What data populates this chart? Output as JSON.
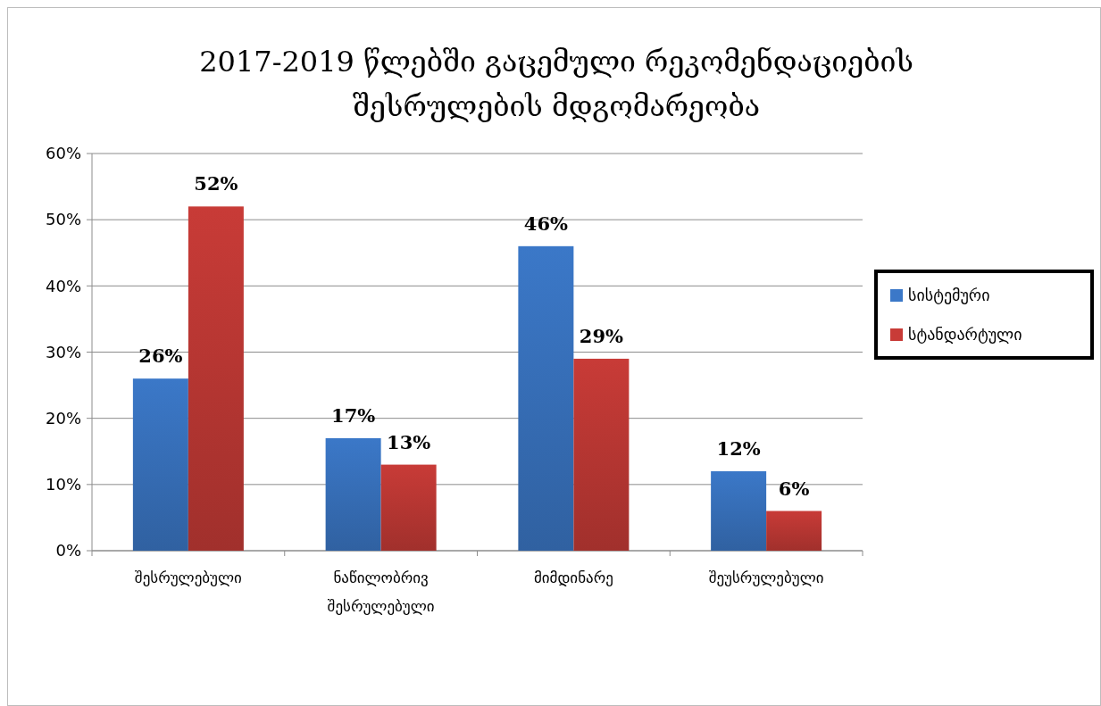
{
  "chart_data": {
    "type": "bar",
    "title": "2017-2019 წლებში გაცემული რეკომენდაციების შესრულების მდგომარეობა",
    "categories": [
      "შესრულებული",
      "ნაწილობრივ შესრულებული",
      "მიმდინარე",
      "შეუსრულებული"
    ],
    "series": [
      {
        "name": "სისტემური",
        "color": "#3b78c8",
        "values": [
          26,
          17,
          46,
          12
        ],
        "value_labels": [
          "26%",
          "17%",
          "46%",
          "12%"
        ]
      },
      {
        "name": "სტანდარტული",
        "color": "#c83b37",
        "values": [
          52,
          13,
          29,
          6
        ],
        "value_labels": [
          "52%",
          "13%",
          "29%",
          "6%"
        ]
      }
    ],
    "ylim": [
      0,
      60
    ],
    "yticks": [
      {
        "value": 0,
        "label": "0%"
      },
      {
        "value": 10,
        "label": "10%"
      },
      {
        "value": 20,
        "label": "20%"
      },
      {
        "value": 30,
        "label": "30%"
      },
      {
        "value": 40,
        "label": "40%"
      },
      {
        "value": 50,
        "label": "50%"
      },
      {
        "value": 60,
        "label": "60%"
      }
    ],
    "grid": "y",
    "legend": "right"
  }
}
